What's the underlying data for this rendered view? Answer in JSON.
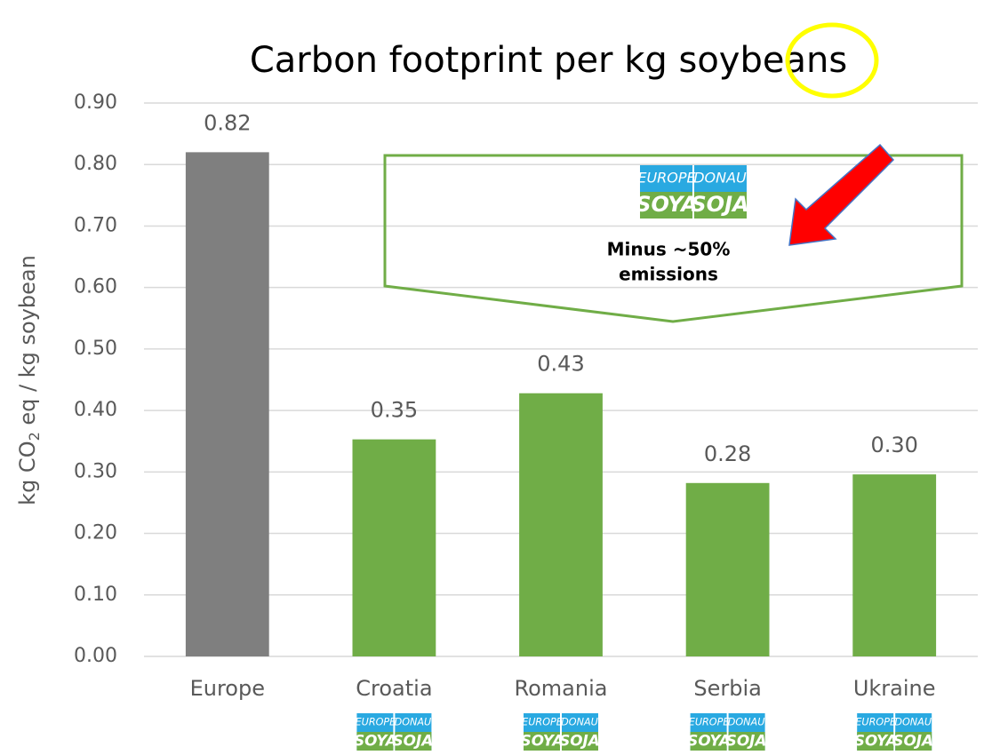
{
  "chart_data": {
    "type": "bar",
    "title": "Carbon footprint per kg soybeans",
    "ylabel": {
      "main": "kg CO",
      "sub": "2",
      "rest": " eq / kg soybean"
    },
    "categories": [
      "Europe",
      "Croatia",
      "Romania",
      "Serbia",
      "Ukraine"
    ],
    "values": [
      0.82,
      0.353,
      0.428,
      0.282,
      0.296
    ],
    "value_labels": [
      "0.82",
      "0.35",
      "0.43",
      "0.28",
      "0.30"
    ],
    "colors": [
      "#7f7f7f",
      "#70ad47",
      "#70ad47",
      "#70ad47",
      "#70ad47"
    ],
    "ylim": [
      0,
      0.9
    ],
    "yticks": [
      {
        "value": 0,
        "label": "0.00"
      },
      {
        "value": 0.1,
        "label": "0.10"
      },
      {
        "value": 0.2,
        "label": "0.20"
      },
      {
        "value": 0.3,
        "label": "0.30"
      },
      {
        "value": 0.4,
        "label": "0.40"
      },
      {
        "value": 0.5,
        "label": "0.50"
      },
      {
        "value": 0.6,
        "label": "0.60"
      },
      {
        "value": 0.7,
        "label": "0.70"
      },
      {
        "value": 0.8,
        "label": "0.80"
      },
      {
        "value": 0.9,
        "label": "0.90"
      }
    ],
    "grid": true,
    "annotation": [
      "Minus ~50%",
      "emissions"
    ],
    "logo": {
      "top1": "EUROPE",
      "bottom1": "SOYA",
      "top2": "DONAU",
      "bottom2": "SOJA"
    }
  }
}
